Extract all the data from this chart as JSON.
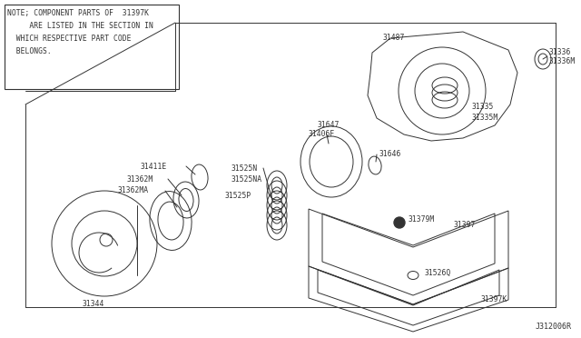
{
  "bg_color": "#ffffff",
  "line_color": "#333333",
  "note_text_line1": "NOTE; COMPONENT PARTS OF  31397K",
  "note_text_line2": "     ARE LISTED IN THE SECTION IN",
  "note_text_line3": "  WHICH RESPECTIVE PART CODE",
  "note_text_line4": "  BELONGS.",
  "diagram_id": "J312006R",
  "kit_label": "31397K"
}
